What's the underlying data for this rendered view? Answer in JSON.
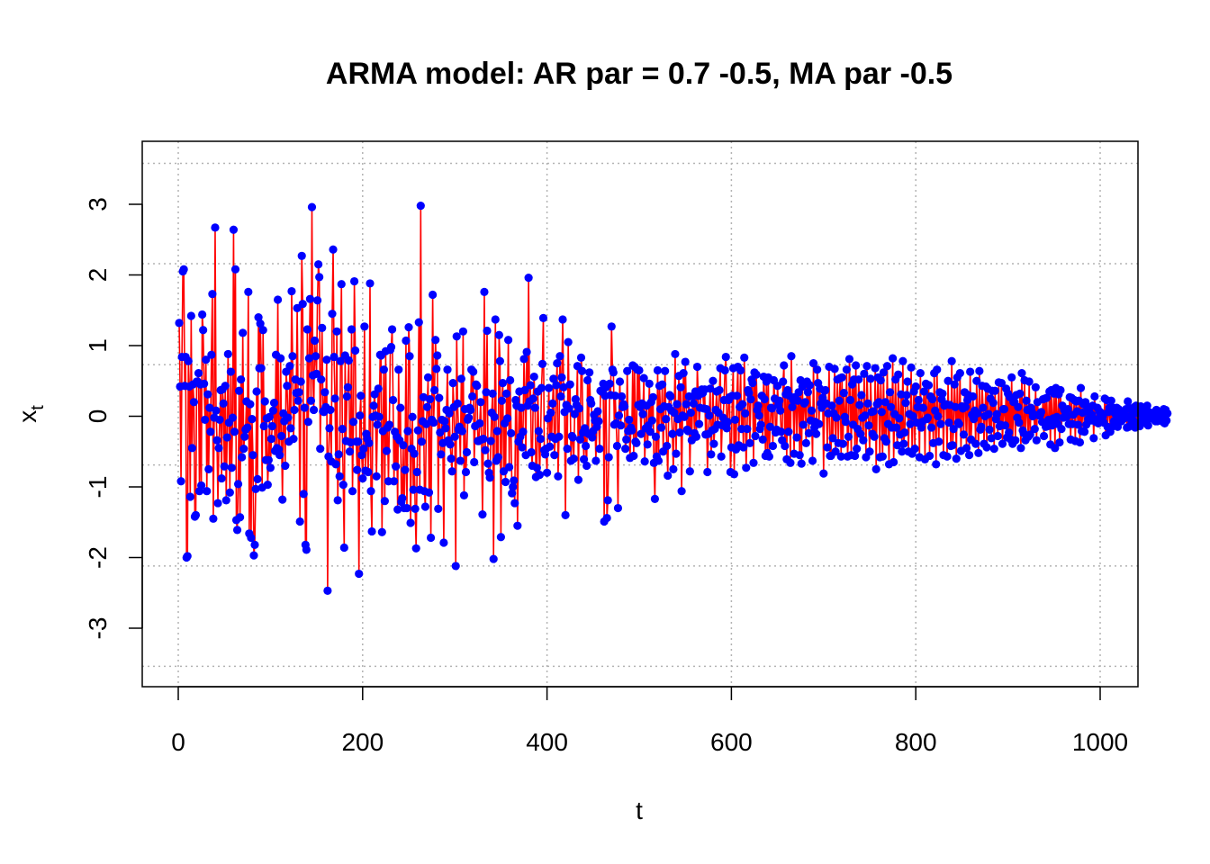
{
  "chart_data": {
    "type": "line",
    "title": "ARMA model: AR par = 0.7 -0.5, MA par -0.5",
    "xlabel": "t",
    "ylabel_main": "x",
    "ylabel_sub": "t",
    "xlim": [
      0,
      1000
    ],
    "ylim": [
      -3.6,
      3.6
    ],
    "x_ticks": [
      0,
      200,
      400,
      600,
      800,
      1000
    ],
    "x_tick_labels": [
      "0",
      "200",
      "400",
      "600",
      "800",
      "1000"
    ],
    "y_ticks": [
      -3,
      -2,
      -1,
      0,
      1,
      2,
      3
    ],
    "y_tick_labels": [
      "-3",
      "-2",
      "-1",
      "0",
      "1",
      "2",
      "3"
    ],
    "grid": "dotted",
    "grid_x": [
      0,
      200,
      400,
      600,
      800,
      1000
    ],
    "grid_y": [
      -3.54,
      -2.12,
      -0.69,
      0.73,
      2.16,
      3.58
    ],
    "series": [
      {
        "line_color": "#ff0000",
        "point_color": "#0000ff",
        "x_start": 1,
        "x_step": 1,
        "values": [
          1.32,
          0.42,
          -0.92,
          0.84,
          2.05,
          2.08,
          0.43,
          0.84,
          -2.0,
          -1.98,
          0.78,
          0.42,
          -1.14,
          1.42,
          -0.45,
          0.45,
          0.2,
          -1.42,
          -1.4,
          0.49,
          0.49,
          0.61,
          -1.06,
          0.45,
          -0.98,
          1.44,
          1.22,
          0.46,
          -0.05,
          0.8,
          -1.06,
          0.31,
          -0.75,
          0.12,
          -0.22,
          0.87,
          1.73,
          -1.45,
          -0.02,
          2.67,
          0.08,
          -0.34,
          -1.23,
          -0.45,
          -0.05,
          0.37,
          -0.88,
          0.38,
          0.18,
          -0.71,
          0.43,
          -1.19,
          -0.3,
          0.88,
          -0.09,
          -1.08,
          0.63,
          -0.73,
          -0.02,
          2.64,
          -0.22,
          2.08,
          -1.47,
          -1.61,
          -0.96,
          0.36,
          -1.43,
          0.52,
          -0.58,
          1.18,
          -0.46,
          -0.29,
          -0.19,
          0.21,
          -0.16,
          1.76,
          -1.66,
          0.17,
          -1.72,
          -0.04,
          -0.55,
          -1.97,
          -1.82,
          -1.03,
          0.35,
          -0.89,
          1.4,
          0.68,
          1.31,
          0.68,
          -1.01,
          1.22,
          -0.14,
          0.21,
          -0.62,
          -0.03,
          -0.97,
          -0.62,
          -0.01,
          -0.73,
          -0.32,
          -0.14,
          0.08,
          0.19,
          -0.49,
          0.87,
          -0.45,
          1.65,
          -0.47,
          -0.55,
          0.82,
          -0.28,
          -1.18,
          0.04,
          -0.07,
          -0.7,
          0.63,
          0.43,
          -0.02,
          -0.36,
          0.71,
          -0.17,
          1.77,
          0.85,
          -0.32,
          0.09,
          0.52,
          0.33,
          1.53,
          0.22,
          0.34,
          -1.49,
          0.49,
          2.27,
          1.59,
          -1.1,
          0.12,
          -1.82,
          -1.89,
          1.23,
          -0.08,
          0.82,
          1.66,
          0.22,
          2.96,
          0.58,
          0.09,
          1.07,
          0.85,
          0.6,
          1.64,
          2.15,
          1.97,
          -0.46,
          0.52,
          1.25,
          0.07,
          0.06,
          0.34,
          0.13,
          0.8,
          -2.47,
          -0.57,
          -0.17,
          0.09,
          -0.64,
          1.45,
          2.36,
          0.84,
          0.25,
          -0.68,
          1.2,
          -1.19,
          -0.54,
          -0.85,
          0.78,
          1.87,
          -0.18,
          -0.97,
          -1.86,
          0.86,
          -0.35,
          0.28,
          0.41,
          0.79,
          -0.5,
          -0.37,
          1.23,
          -1.06,
          -0.08,
          1.91,
          0.93,
          -0.36,
          -0.76,
          -0.36,
          -2.23,
          0.01,
          0.29,
          -0.55,
          -0.88,
          -0.46,
          1.27,
          -0.77,
          -0.25,
          -0.32,
          -0.79,
          -0.38,
          1.88,
          -1.06,
          -1.63,
          -0.01,
          0.15,
          0.31,
          0.01,
          -0.85,
          -0.12,
          0.39,
          -0.01,
          0.87,
          0.86,
          -1.64,
          -0.21,
          0.66,
          -1.2,
          0.92,
          -0.49,
          -0.16,
          -0.92,
          -0.12,
          0.94,
          0.98,
          1.23,
          0.23,
          -0.92,
          -0.22,
          -0.71,
          -0.29,
          -1.32,
          0.66,
          -0.34,
          0.12,
          -1.21,
          -1.16,
          -0.41,
          -1.3,
          -0.76,
          1.07,
          -1.3,
          -0.21,
          1.26,
          0.85,
          -1.51,
          -0.46,
          -0.01,
          -1.04,
          -0.53,
          -1.31,
          -1.87,
          -0.79,
          -0.2,
          1.33,
          -1.04,
          2.98,
          -0.36,
          -0.07,
          0.27,
          -1.06,
          -1.28,
          -0.11,
          0.13,
          0.55,
          -1.08,
          0.24,
          -1.72,
          -0.05,
          1.72,
          -0.09,
          0.37,
          1.08,
          0.67,
          0.86,
          -1.31,
          0.26,
          -0.23,
          -0.54,
          -0.05,
          -0.38,
          -1.79,
          -0.07,
          -0.17,
          0.09,
          0.66,
          -0.34,
          0.04,
          -0.4,
          -0.6,
          -0.78,
          0.47,
          0.13,
          -0.29,
          -2.12,
          1.13,
          0.18,
          -0.19,
          -0.15,
          -0.63,
          0.53,
          -0.21,
          1.2,
          -1.12,
          0.1,
          -0.79,
          -0.51,
          -0.05,
          -0.02,
          0.12,
          0.09,
          0.66,
          0.28,
          0.63,
          -0.65,
          -0.14,
          0.45,
          0.43,
          -0.35,
          -0.35,
          -0.1,
          0.2,
          -0.33,
          -1.39,
          -0.32,
          1.76,
          -0.48,
          0.34,
          1.21,
          -0.67,
          -0.8,
          -0.87,
          -0.35,
          0.05,
          0.32,
          -2.02,
          -0.01,
          1.37,
          -0.63,
          -0.21,
          -0.58,
          1.15,
          0.78,
          -1.71,
          0.22,
          0.47,
          -0.78,
          -0.1,
          -0.93,
          0.32,
          -0.03,
          1.08,
          -0.72,
          0.51,
          -0.24,
          -1.09,
          -1.0,
          -0.91,
          -1.23,
          0.23,
          0.15,
          -1.55,
          -0.36,
          0.35,
          -0.29,
          0.12,
          -0.44,
          -0.22,
          0.81,
          0.37,
          -0.55,
          0.91,
          0.15,
          1.96,
          0.21,
          0.44,
          -0.51,
          -0.7,
          0.25,
          0.56,
          0.12,
          -0.86,
          -0.73,
          0.35,
          -0.21,
          -0.83,
          -0.32,
          0.4,
          0.74,
          1.39,
          -0.48,
          -0.54,
          -0.46,
          -0.8,
          -0.03,
          0.4,
          -0.43,
          0.05,
          -0.29,
          0.18,
          0.53,
          -0.55,
          -0.32,
          0.44,
          0.75,
          -0.85,
          -0.29,
          0.85,
          0.28,
          0.55,
          1.37,
          0.41,
          0.06,
          -1.4,
          0.16,
          -0.46,
          1.05,
          0.11,
          0.45,
          -0.63,
          -0.28,
          -0.3,
          -0.6,
          0.03,
          0.24,
          0.16,
          0.71,
          -0.9,
          0.11,
          -0.33,
          0.83,
          0.64,
          -0.23,
          -0.61,
          -0.17,
          -0.42,
          -0.7,
          0.51,
          -0.25,
          0.62,
          0.23,
          0.18,
          -0.3,
          -0.21,
          0.02,
          -0.06,
          -0.63,
          -0.15,
          0.07,
          -0.07,
          -0.46,
          0.36,
          0.35,
          0.36,
          0.46,
          -1.49,
          0.29,
          0.41,
          -1.44,
          -1.19,
          -0.58,
          0.46,
          0.3,
          1.27,
          0.66,
          0.62,
          -0.12,
          0.29,
          -0.1,
          -0.42,
          -1.3,
          0.01,
          0.49,
          -0.13,
          0.28,
          0.13,
          0.17,
          0.14,
          -0.46,
          -0.33,
          0.64,
          -0.21,
          -0.05,
          -0.59,
          -0.16,
          -0.2,
          0.72,
          -0.56,
          0.7,
          -0.36,
          -0.38,
          0.66,
          0.16,
          0.65,
          0.13,
          -0.25,
          0.18,
          0.03,
          0.54,
          -0.64,
          -0.17,
          0.15,
          -0.4,
          -0.13,
          0.46,
          -0.22,
          0.2,
          -0.06,
          0.27,
          -0.66,
          -1.17,
          -0.29,
          -0.57,
          0.65,
          -0.63,
          0.43,
          0.1,
          -0.16,
          0.45,
          -0.5,
          0.14,
          0.64,
          -0.04,
          -0.42,
          -0.84,
          0.13,
          0.3,
          0.28,
          0.08,
          -0.25,
          -0.75,
          0.05,
          0.88,
          -0.53,
          0.17,
          -0.04,
          0.57,
          -0.23,
          0.41,
          -1.06,
          0.01,
          0.61,
          -0.01,
          0.77,
          0.17,
          -0.19,
          -0.21,
          0.28,
          -0.78,
          0.05,
          -0.34,
          0.28,
          0.18,
          -0.24,
          0.35,
          -0.29,
          0.7,
          0.29,
          -0.11,
          0.12,
          0.32,
          0.38,
          0.33,
          0.11,
          0.38,
          -0.26,
          0.1,
          -0.79,
          -0.25,
          0.01,
          0.39,
          -0.54,
          -0.2,
          0.5,
          -0.39,
          -0.18,
          0.09,
          0.35,
          -0.12,
          0.05,
          0.37,
          0.68,
          -0.57,
          -0.13,
          -0.02,
          0.23,
          0.65,
          0.84,
          -0.17,
          -0.08,
          0.23,
          0.27,
          -0.79,
          -0.44,
          0.29,
          0.68,
          -0.82,
          -0.05,
          -0.47,
          0.29,
          0.7,
          -0.41,
          0.13,
          0.65,
          -0.18,
          0.17,
          -0.44,
          0.83,
          0.04,
          -0.73,
          -0.18,
          0.37,
          0.33,
          -0.38,
          0.24,
          0.52,
          0.47,
          -0.66,
          0.62,
          -0.28,
          0.59,
          0.09,
          0.15,
          0.01,
          -0.18,
          -0.12,
          0.29,
          -0.33,
          0.56,
          0.24,
          -0.56,
          0.49,
          -0.52,
          0.55,
          -0.57,
          -0.15,
          0.12,
          0.11,
          -0.42,
          0.51,
          0.25,
          -0.23,
          -0.19,
          0.43,
          0.16,
          0.22,
          0.08,
          -0.22,
          -0.34,
          0.49,
          0.72,
          -0.42,
          0.31,
          -0.61,
          0.37,
          -0.22,
          0.29,
          -0.66,
          0.85,
          0.13,
          0.23,
          -0.53,
          0.27,
          0.23,
          -0.3,
          0.22,
          0.34,
          -0.55,
          0.51,
          -0.67,
          0.42,
          -0.12,
          0.18,
          0.2,
          -0.38,
          0.49,
          0.34,
          -0.24,
          0.44,
          -0.06,
          0.08,
          -0.63,
          0.75,
          -0.16,
          -0.08,
          -0.25,
          0.66,
          0.47,
          -0.11,
          0.39,
          0.18,
          0.12,
          0.26,
          -0.81,
          0.36,
          0.37,
          0.18,
          -0.44,
          0.04,
          0.7,
          -0.56,
          -0.56,
          0.15,
          -0.31,
          0.04,
          0.67,
          -0.5,
          -0.02,
          0.52,
          -0.38,
          0.22,
          0.54,
          -0.57,
          0.55,
          -0.39,
          0.33,
          -0.01,
          -0.08,
          0.66,
          -0.57,
          -0.29,
          0.81,
          0.23,
          -0.55,
          0.45,
          -0.12,
          0.52,
          -0.56,
          0.72,
          -0.46,
          -0.18,
          0.52,
          0.16,
          -0.25,
          0.3,
          -0.02,
          -0.34,
          0.6,
          0.01,
          -0.58,
          0.71,
          0.18,
          -0.13,
          -0.5,
          0.53,
          0.06,
          -0.25,
          0.07,
          -0.29,
          0.68,
          -0.75,
          0.17,
          0.55,
          0.2,
          -0.58,
          0.51,
          0.06,
          -0.57,
          0.62,
          -0.31,
          0.2,
          -0.36,
          0.71,
          -0.11,
          -0.68,
          0.34,
          0.13,
          -0.16,
          0.82,
          -0.65,
          0.03,
          0.52,
          -0.16,
          -0.41,
          0.59,
          -0.03,
          -0.26,
          0.31,
          -0.5,
          0.78,
          -0.39,
          -0.23,
          0.19,
          0.3,
          0.49,
          -0.5,
          0.03,
          -0.11,
          0.69,
          -0.53,
          0.0,
          0.35,
          -0.46,
          0.42,
          -0.09,
          0.13,
          0.23,
          -0.58,
          0.61,
          -0.16,
          -0.08,
          0.12,
          0.35,
          -0.61,
          0.46,
          -0.04,
          -0.02,
          0.44,
          -0.56,
          0.28,
          -0.16,
          0.24,
          -0.38,
          0.61,
          0.08,
          -0.68,
          0.66,
          0.0,
          -0.36,
          0.34,
          -0.11,
          0.24,
          0.32,
          -0.55,
          0.15,
          0.16,
          0.17,
          -0.57,
          0.5,
          -0.09,
          0.16,
          -0.42,
          0.78,
          -0.41,
          -0.18,
          0.45,
          0.13,
          -0.6,
          0.55,
          -0.09,
          -0.11,
          0.61,
          -0.49,
          0.14,
          0.11,
          -0.26,
          0.34,
          0.13,
          -0.45,
          0.23,
          0.3,
          -0.55,
          0.63,
          -0.33,
          0.02,
          0.28,
          -0.04,
          0.08,
          -0.39,
          0.5,
          0.04,
          -0.52,
          0.64,
          -0.19,
          -0.15,
          0.43,
          0.12,
          -0.39,
          0.0,
          0.42,
          -0.44,
          0.39,
          0.03,
          -0.19,
          0.25,
          -0.31,
          0.36,
          0.19,
          -0.46,
          0.36,
          -0.04,
          0.03,
          -0.28,
          0.48,
          -0.14,
          -0.12,
          0.47,
          -0.39,
          0.1,
          0.1,
          -0.13,
          0.39,
          -0.3,
          0.32,
          -0.23,
          0.27,
          -0.33,
          0.55,
          -0.39,
          0.2,
          0.2,
          -0.34,
          0.3,
          -0.02,
          0.13,
          -0.09,
          0.32,
          -0.45,
          0.61,
          -0.2,
          -0.24,
          0.51,
          -0.34,
          0.22,
          0.09,
          -0.29,
          0.49,
          -0.26,
          0.12,
          0.06,
          0.0,
          0.02,
          -0.18,
          0.41,
          -0.34,
          0.2,
          0.02,
          0.01,
          0.02,
          0.06,
          -0.08,
          0.24,
          -0.28,
          0.25,
          -0.15,
          0.26,
          -0.14,
          -0.05,
          0.35,
          -0.4,
          0.37,
          -0.13,
          -0.03,
          0.32,
          -0.45,
          0.4,
          -0.01,
          -0.11,
          0.31,
          -0.37,
          0.37,
          -0.18,
          0.15,
          -0.02,
          0.09,
          0.01,
          -0.01,
          0.0,
          0.1,
          -0.11,
          0.27,
          -0.33,
          0.26,
          -0.11,
          0.02,
          0.23,
          -0.35,
          0.21,
          0.07,
          -0.12,
          0.22,
          -0.37,
          0.4,
          -0.21,
          0.05,
          0.17,
          -0.22,
          0.2,
          -0.12,
          0.14,
          -0.04,
          0.08,
          0.02,
          -0.06,
          0.02,
          0.15,
          -0.31,
          0.28,
          -0.08,
          -0.05,
          0.12,
          -0.1,
          0.07,
          0.0,
          0.05,
          -0.01,
          0.0,
          -0.09,
          0.25,
          -0.27,
          0.23,
          -0.15,
          0.06,
          0.12,
          -0.22,
          0.22,
          -0.15,
          0.12,
          -0.07,
          0.04,
          -0.05,
          0.12,
          -0.15,
          0.1,
          -0.03,
          0.05,
          -0.07,
          0.03,
          0.03,
          -0.03,
          -0.02,
          0.1,
          -0.16,
          0.21,
          -0.15,
          0.0,
          0.11,
          -0.08,
          0.03,
          -0.06,
          0.13,
          -0.16,
          0.15,
          -0.1,
          0.04,
          0.06,
          -0.14,
          0.14,
          -0.06,
          0.02,
          0.01,
          -0.04,
          0.07,
          -0.1,
          0.15,
          -0.13,
          0.06,
          -0.03,
          0.03,
          -0.03,
          0.04,
          -0.04,
          0.06,
          -0.07,
          0.09,
          -0.07,
          0.05,
          -0.02,
          0.01,
          -0.02,
          0.05,
          -0.08,
          0.1,
          -0.1,
          0.09,
          -0.06,
          0.04
        ]
      }
    ]
  }
}
